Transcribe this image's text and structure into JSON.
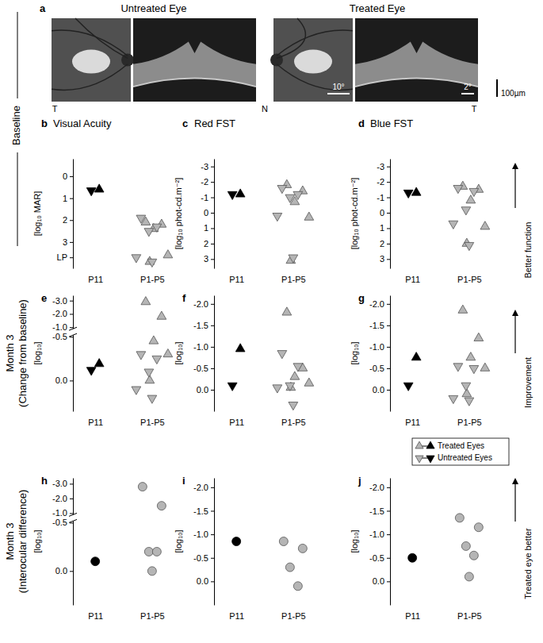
{
  "figure": {
    "panel_a": {
      "letter": "a",
      "titles": [
        "Untreated Eye",
        "Treated Eye"
      ],
      "side_labels": [
        "T",
        "N",
        "T"
      ],
      "scale_labels": [
        "10°",
        "2°",
        "100µm"
      ]
    },
    "row_labels": [
      [
        "Baseline"
      ],
      [
        "Month 3",
        "(Change from baseline)"
      ],
      [
        "Month 3",
        "(Interocular difference)"
      ]
    ],
    "arrow_labels": [
      "Better function",
      "Improvement",
      "Treated eye better"
    ]
  },
  "chart_data": [
    {
      "type": "scatter",
      "panel": "b",
      "title": "Visual Acuity",
      "y_label": "[log₁₀ MAR]",
      "categories": [
        "P11",
        "P1-P5"
      ],
      "ylim": [
        4.2,
        -0.8
      ],
      "yticks": [
        0,
        1,
        2,
        3,
        {
          "value": 3.7,
          "label": "LP"
        }
      ],
      "series": [
        {
          "marker": "triangle-up",
          "x": [
            "P11",
            "P1-P5",
            "P1-P5",
            "P1-P5",
            "P1-P5",
            "P1-P5"
          ],
          "values": [
            0.6,
            2.1,
            2.2,
            2.4,
            3.6,
            3.9
          ],
          "colors": [
            "#000000",
            "#b5b5b5",
            "#b5b5b5",
            "#b5b5b5",
            "#b5b5b5",
            "#b5b5b5"
          ]
        },
        {
          "marker": "triangle-down",
          "x": [
            "P11",
            "P1-P5",
            "P1-P5",
            "P1-P5",
            "P1-P5",
            "P1-P5"
          ],
          "values": [
            0.65,
            1.9,
            2.3,
            2.5,
            3.7,
            3.9
          ],
          "colors": [
            "#000000",
            "#b5b5b5",
            "#b5b5b5",
            "#b5b5b5",
            "#b5b5b5",
            "#b5b5b5"
          ]
        }
      ]
    },
    {
      "type": "scatter",
      "panel": "c",
      "title": "Red FST",
      "y_label": "[log₁₀ phot-cd.m⁻²]",
      "categories": [
        "P11",
        "P1-P5"
      ],
      "ylim": [
        3.6,
        -3.5
      ],
      "yticks": [
        -3,
        -2,
        -1,
        0,
        1,
        2,
        3
      ],
      "series": [
        {
          "marker": "triangle-up",
          "x": [
            "P11",
            "P1-P5",
            "P1-P5",
            "P1-P5",
            "P1-P5",
            "P1-P5"
          ],
          "values": [
            -1.2,
            -1.8,
            -1.4,
            -0.7,
            0.3,
            3.1
          ],
          "colors": [
            "#000000",
            "#b5b5b5",
            "#b5b5b5",
            "#b5b5b5",
            "#b5b5b5",
            "#b5b5b5"
          ]
        },
        {
          "marker": "triangle-down",
          "x": [
            "P11",
            "P1-P5",
            "P1-P5",
            "P1-P5",
            "P1-P5",
            "P1-P5"
          ],
          "values": [
            -1.2,
            -1.6,
            -1.2,
            -1.0,
            0.2,
            2.9
          ],
          "colors": [
            "#000000",
            "#b5b5b5",
            "#b5b5b5",
            "#b5b5b5",
            "#b5b5b5",
            "#b5b5b5"
          ]
        }
      ]
    },
    {
      "type": "scatter",
      "panel": "d",
      "title": "Blue FST",
      "y_label": "[log₁₀ phot-cd.m⁻²]",
      "categories": [
        "P11",
        "P1-P5"
      ],
      "ylim": [
        3.6,
        -3.5
      ],
      "yticks": [
        -3,
        -2,
        -1,
        0,
        1,
        2,
        3
      ],
      "series": [
        {
          "marker": "triangle-up",
          "x": [
            "P11",
            "P1-P5",
            "P1-P5",
            "P1-P5",
            "P1-P5",
            "P1-P5"
          ],
          "values": [
            -1.3,
            -1.7,
            -1.5,
            -0.8,
            0.9,
            2.0
          ],
          "colors": [
            "#000000",
            "#b5b5b5",
            "#b5b5b5",
            "#b5b5b5",
            "#b5b5b5",
            "#b5b5b5"
          ]
        },
        {
          "marker": "triangle-down",
          "x": [
            "P11",
            "P1-P5",
            "P1-P5",
            "P1-P5",
            "P1-P5",
            "P1-P5"
          ],
          "values": [
            -1.3,
            -1.6,
            -1.4,
            -0.2,
            0.7,
            2.1
          ],
          "colors": [
            "#000000",
            "#b5b5b5",
            "#b5b5b5",
            "#b5b5b5",
            "#b5b5b5",
            "#b5b5b5"
          ]
        }
      ]
    },
    {
      "type": "scatter",
      "panel": "e",
      "y_label": "[log₁₀]",
      "categories": [
        "P11",
        "P1-P5"
      ],
      "ylim": [
        0.35,
        -3.4
      ],
      "ybreak": [
        -1.0,
        -0.5
      ],
      "yticks": [
        {
          "value": -3,
          "label": "-3.0"
        },
        {
          "value": -2,
          "label": "-2.0"
        },
        {
          "value": -1,
          "label": "-1.0"
        },
        {
          "value": -0.5,
          "label": "-0.5"
        },
        {
          "value": 0,
          "label": "0.0"
        }
      ],
      "series": [
        {
          "marker": "triangle-up",
          "x": [
            "P11",
            "P1-P5",
            "P1-P5",
            "P1-P5",
            "P1-P5",
            "P1-P5"
          ],
          "values": [
            -0.19,
            -2.9,
            -1.8,
            -0.45,
            -0.3,
            0.0
          ],
          "colors": [
            "#000000",
            "#b5b5b5",
            "#b5b5b5",
            "#b5b5b5",
            "#b5b5b5",
            "#b5b5b5"
          ]
        },
        {
          "marker": "triangle-down",
          "x": [
            "P11",
            "P1-P5",
            "P1-P5",
            "P1-P5",
            "P1-P5",
            "P1-P5"
          ],
          "values": [
            -0.12,
            -0.3,
            -0.25,
            -0.1,
            0.1,
            0.2
          ],
          "colors": [
            "#000000",
            "#b5b5b5",
            "#b5b5b5",
            "#b5b5b5",
            "#b5b5b5",
            "#b5b5b5"
          ]
        }
      ]
    },
    {
      "type": "scatter",
      "panel": "f",
      "y_label": "[log₁₀]",
      "categories": [
        "P11",
        "P1-P5"
      ],
      "ylim": [
        0.5,
        -2.2
      ],
      "yticks": [
        {
          "value": -2,
          "label": "-2.0"
        },
        {
          "value": -1.5,
          "label": "-1.5"
        },
        {
          "value": -1,
          "label": "-1.0"
        },
        {
          "value": -0.5,
          "label": "-0.5"
        },
        {
          "value": 0,
          "label": "0.0"
        }
      ],
      "series": [
        {
          "marker": "triangle-up",
          "x": [
            "P11",
            "P1-P5",
            "P1-P5",
            "P1-P5",
            "P1-P5",
            "P1-P5"
          ],
          "values": [
            -0.95,
            -1.8,
            -0.5,
            -0.3,
            -0.15,
            -0.05
          ],
          "colors": [
            "#000000",
            "#b5b5b5",
            "#b5b5b5",
            "#b5b5b5",
            "#b5b5b5",
            "#b5b5b5"
          ]
        },
        {
          "marker": "triangle-down",
          "x": [
            "P11",
            "P1-P5",
            "P1-P5",
            "P1-P5",
            "P1-P5",
            "P1-P5"
          ],
          "values": [
            -0.1,
            -0.85,
            -0.55,
            -0.1,
            -0.05,
            0.35
          ],
          "colors": [
            "#000000",
            "#b5b5b5",
            "#b5b5b5",
            "#b5b5b5",
            "#b5b5b5",
            "#b5b5b5"
          ]
        }
      ]
    },
    {
      "type": "scatter",
      "panel": "g",
      "y_label": "[log₁₀]",
      "legend": "bottom-right",
      "categories": [
        "P11",
        "P1-P5"
      ],
      "ylim": [
        0.5,
        -2.2
      ],
      "yticks": [
        {
          "value": -2,
          "label": "-2.0"
        },
        {
          "value": -1.5,
          "label": "-1.5"
        },
        {
          "value": -1,
          "label": "-1.0"
        },
        {
          "value": -0.5,
          "label": "-0.5"
        },
        {
          "value": 0,
          "label": "0.0"
        }
      ],
      "series": [
        {
          "name": "Treated Eyes",
          "marker": "triangle-up",
          "x": [
            "P11",
            "P1-P5",
            "P1-P5",
            "P1-P5",
            "P1-P5",
            "P1-P5"
          ],
          "values": [
            -0.75,
            -1.85,
            -1.2,
            -0.75,
            -0.5,
            0.1
          ],
          "colors": [
            "#000000",
            "#b5b5b5",
            "#b5b5b5",
            "#b5b5b5",
            "#b5b5b5",
            "#b5b5b5"
          ]
        },
        {
          "name": "Untreated Eyes",
          "marker": "triangle-down",
          "x": [
            "P11",
            "P1-P5",
            "P1-P5",
            "P1-P5",
            "P1-P5",
            "P1-P5"
          ],
          "values": [
            -0.1,
            -0.55,
            -0.5,
            -0.1,
            0.2,
            0.25
          ],
          "colors": [
            "#000000",
            "#b5b5b5",
            "#b5b5b5",
            "#b5b5b5",
            "#b5b5b5",
            "#b5b5b5"
          ]
        }
      ]
    },
    {
      "type": "scatter",
      "panel": "h",
      "y_label": "[log₁₀]",
      "categories": [
        "P11",
        "P1-P5"
      ],
      "ylim": [
        0.35,
        -3.4
      ],
      "ybreak": [
        -1.0,
        -0.5
      ],
      "yticks": [
        {
          "value": -3,
          "label": "-3.0"
        },
        {
          "value": -2,
          "label": "-2.0"
        },
        {
          "value": -1,
          "label": "-1.0"
        },
        {
          "value": -0.5,
          "label": "-0.5"
        },
        {
          "value": 0,
          "label": "0.0"
        }
      ],
      "series": [
        {
          "marker": "circle",
          "x": [
            "P11",
            "P1-P5",
            "P1-P5",
            "P1-P5",
            "P1-P5",
            "P1-P5"
          ],
          "values": [
            -0.1,
            -2.8,
            -1.5,
            -0.2,
            -0.2,
            0.0
          ],
          "colors": [
            "#000000",
            "#b5b5b5",
            "#b5b5b5",
            "#b5b5b5",
            "#b5b5b5",
            "#b5b5b5"
          ]
        }
      ]
    },
    {
      "type": "scatter",
      "panel": "i",
      "y_label": "[log₁₀]",
      "categories": [
        "P11",
        "P1-P5"
      ],
      "ylim": [
        0.5,
        -2.2
      ],
      "yticks": [
        {
          "value": -2,
          "label": "-2.0"
        },
        {
          "value": -1.5,
          "label": "-1.5"
        },
        {
          "value": -1,
          "label": "-1.0"
        },
        {
          "value": -0.5,
          "label": "-0.5"
        },
        {
          "value": 0,
          "label": "0.0"
        }
      ],
      "series": [
        {
          "marker": "circle",
          "x": [
            "P11",
            "P1-P5",
            "P1-P5",
            "P1-P5",
            "P1-P5"
          ],
          "values": [
            -0.85,
            -0.85,
            -0.7,
            -0.3,
            0.1
          ],
          "colors": [
            "#000000",
            "#b5b5b5",
            "#b5b5b5",
            "#b5b5b5",
            "#b5b5b5"
          ]
        }
      ]
    },
    {
      "type": "scatter",
      "panel": "j",
      "y_label": "[log₁₀]",
      "categories": [
        "P11",
        "P1-P5"
      ],
      "ylim": [
        0.5,
        -2.2
      ],
      "yticks": [
        {
          "value": -2,
          "label": "-2.0"
        },
        {
          "value": -1.5,
          "label": "-1.5"
        },
        {
          "value": -1,
          "label": "-1.0"
        },
        {
          "value": -0.5,
          "label": "-0.5"
        },
        {
          "value": 0,
          "label": "0.0"
        }
      ],
      "series": [
        {
          "marker": "circle",
          "x": [
            "P11",
            "P1-P5",
            "P1-P5",
            "P1-P5",
            "P1-P5",
            "P1-P5"
          ],
          "values": [
            -0.5,
            -1.35,
            -1.15,
            -0.75,
            -0.55,
            -0.1
          ],
          "colors": [
            "#000000",
            "#b5b5b5",
            "#b5b5b5",
            "#b5b5b5",
            "#b5b5b5",
            "#b5b5b5"
          ]
        }
      ]
    }
  ]
}
